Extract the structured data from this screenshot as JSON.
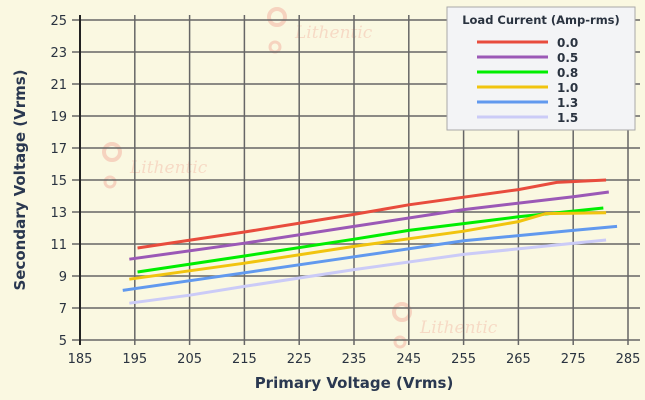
{
  "chart_data": {
    "type": "line",
    "xlabel": "Primary Voltage (Vrms)",
    "ylabel": "Secondary Voltage (Vrms)",
    "xlim": [
      185,
      285
    ],
    "ylim": [
      5,
      25
    ],
    "xticks": [
      185,
      195,
      205,
      215,
      225,
      235,
      245,
      255,
      265,
      275,
      285
    ],
    "yticks": [
      5,
      7,
      9,
      11,
      13,
      15,
      17,
      19,
      21,
      23,
      25
    ],
    "grid": true,
    "legend": {
      "title": "Load Current (Amp-rms)",
      "placement": "top-right"
    },
    "series": [
      {
        "name": "0.0",
        "color": "#e84c3d",
        "x": [
          195.5,
          215,
          235,
          245,
          265,
          272,
          281
        ],
        "y": [
          10.75,
          11.75,
          12.85,
          13.45,
          14.4,
          14.85,
          15.0
        ]
      },
      {
        "name": "0.5",
        "color": "#9b59b6",
        "x": [
          194,
          215,
          235,
          255,
          275,
          281.5
        ],
        "y": [
          10.05,
          11.05,
          12.1,
          13.15,
          13.95,
          14.25
        ]
      },
      {
        "name": "0.8",
        "color": "#00ee00",
        "x": [
          195.5,
          215,
          235,
          245,
          265,
          280.5
        ],
        "y": [
          9.25,
          10.25,
          11.3,
          11.85,
          12.7,
          13.25
        ]
      },
      {
        "name": "1.0",
        "color": "#f1c40f",
        "x": [
          194,
          215,
          235,
          255,
          265,
          270,
          281
        ],
        "y": [
          8.8,
          9.8,
          10.85,
          11.8,
          12.4,
          12.9,
          12.95
        ]
      },
      {
        "name": "1.3",
        "color": "#6199ee",
        "x": [
          192.8,
          215,
          235,
          255,
          275,
          283
        ],
        "y": [
          8.1,
          9.2,
          10.2,
          11.2,
          11.85,
          12.1
        ]
      },
      {
        "name": "1.5",
        "color": "#cbcbf7",
        "x": [
          194,
          205,
          215,
          235,
          255,
          281
        ],
        "y": [
          7.3,
          7.8,
          8.35,
          9.4,
          10.35,
          11.25
        ]
      }
    ]
  },
  "watermark": "Lithentic"
}
